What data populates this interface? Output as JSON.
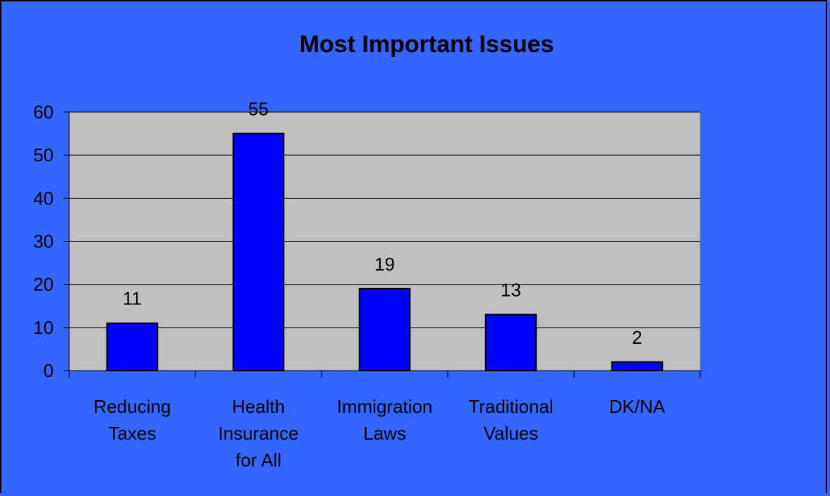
{
  "chart_data": {
    "type": "bar",
    "title": "Most Important Issues",
    "categories": [
      [
        "Reducing",
        "Taxes"
      ],
      [
        "Health",
        "Insurance",
        "for All"
      ],
      [
        "Immigration",
        "Laws"
      ],
      [
        "Traditional",
        "Values"
      ],
      [
        "DK/NA"
      ]
    ],
    "values": [
      11,
      55,
      19,
      13,
      2
    ],
    "ylim": [
      0,
      60
    ],
    "yticks": [
      0,
      10,
      20,
      30,
      40,
      50,
      60
    ],
    "grid": true,
    "legend": "none",
    "colors": {
      "background": "#3366ff",
      "plot_area": "#c0c0c0",
      "bar": "#0000ff",
      "bar_border": "#000000"
    }
  }
}
